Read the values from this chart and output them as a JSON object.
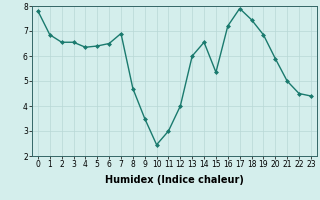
{
  "x": [
    0,
    1,
    2,
    3,
    4,
    5,
    6,
    7,
    8,
    9,
    10,
    11,
    12,
    13,
    14,
    15,
    16,
    17,
    18,
    19,
    20,
    21,
    22,
    23
  ],
  "y": [
    7.8,
    6.85,
    6.55,
    6.55,
    6.35,
    6.4,
    6.5,
    6.9,
    4.7,
    3.5,
    2.45,
    3.0,
    4.0,
    6.0,
    6.55,
    5.35,
    7.2,
    7.9,
    7.45,
    6.85,
    5.9,
    5.0,
    4.5,
    4.4
  ],
  "line_color": "#1a7a6e",
  "marker": "D",
  "marker_size": 2,
  "linewidth": 1.0,
  "xlabel": "Humidex (Indice chaleur)",
  "xlabel_fontsize": 7,
  "xlabel_fontweight": "bold",
  "ylim": [
    2,
    8
  ],
  "xlim": [
    -0.5,
    23.5
  ],
  "yticks": [
    2,
    3,
    4,
    5,
    6,
    7,
    8
  ],
  "xticks": [
    0,
    1,
    2,
    3,
    4,
    5,
    6,
    7,
    8,
    9,
    10,
    11,
    12,
    13,
    14,
    15,
    16,
    17,
    18,
    19,
    20,
    21,
    22,
    23
  ],
  "xtick_labels": [
    "0",
    "1",
    "2",
    "3",
    "4",
    "5",
    "6",
    "7",
    "8",
    "9",
    "10",
    "11",
    "12",
    "13",
    "14",
    "15",
    "16",
    "17",
    "18",
    "19",
    "20",
    "21",
    "22",
    "23"
  ],
  "tick_fontsize": 5.5,
  "background_color": "#d4eeec",
  "grid_color": "#b8d8d6",
  "spine_color": "#336666"
}
